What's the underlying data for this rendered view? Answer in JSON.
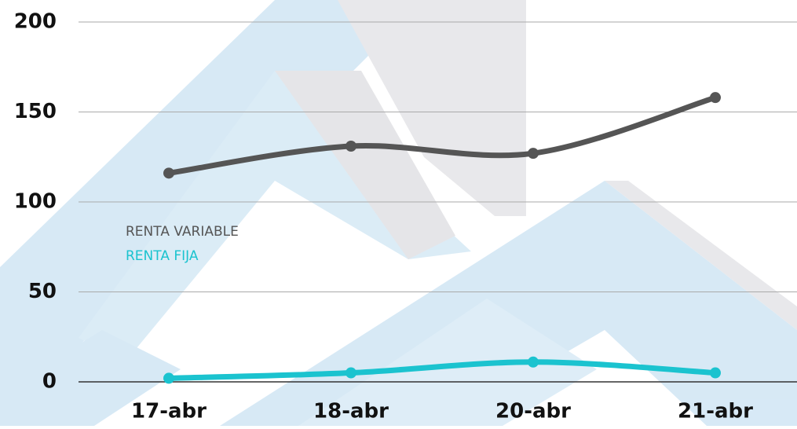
{
  "chart_data": {
    "type": "line",
    "categories": [
      "17-abr",
      "18-abr",
      "20-abr",
      "21-abr"
    ],
    "series": [
      {
        "name": "RENTA VARIABLE",
        "color": "#555555",
        "values": [
          116,
          131,
          127,
          158
        ]
      },
      {
        "name": "RENTA FIJA",
        "color": "#1bc3cf",
        "values": [
          2,
          5,
          11,
          5
        ]
      }
    ],
    "ylim": [
      0,
      200
    ],
    "yticks": [
      0,
      50,
      100,
      150,
      200
    ],
    "grid": true,
    "smooth": true
  }
}
